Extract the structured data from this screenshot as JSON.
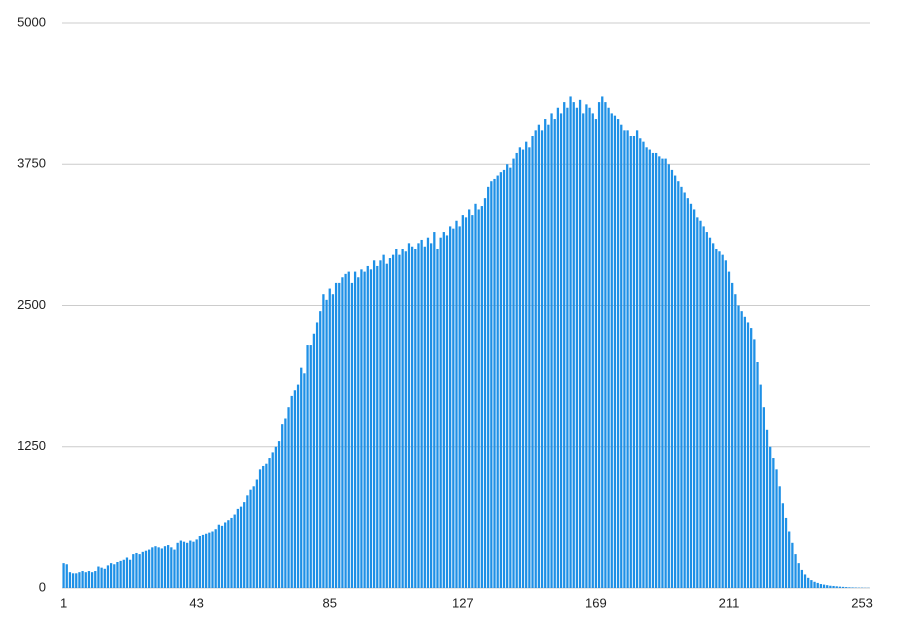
{
  "chart_data": {
    "type": "bar",
    "color": "#1e90e6",
    "grid": true,
    "ylim": [
      0,
      5000
    ],
    "yticks": [
      0,
      1250,
      2500,
      3750,
      5000
    ],
    "categories": [
      "1",
      null,
      null,
      null,
      null,
      null,
      null,
      null,
      null,
      null,
      null,
      null,
      null,
      null,
      null,
      null,
      null,
      null,
      null,
      null,
      null,
      null,
      null,
      null,
      null,
      null,
      null,
      null,
      null,
      null,
      null,
      null,
      null,
      null,
      null,
      null,
      null,
      null,
      null,
      null,
      null,
      null,
      "43",
      null,
      null,
      null,
      null,
      null,
      null,
      null,
      null,
      null,
      null,
      null,
      null,
      null,
      null,
      null,
      null,
      null,
      null,
      null,
      null,
      null,
      null,
      null,
      null,
      null,
      null,
      null,
      null,
      null,
      null,
      null,
      null,
      null,
      null,
      null,
      null,
      null,
      null,
      null,
      null,
      null,
      "85",
      null,
      null,
      null,
      null,
      null,
      null,
      null,
      null,
      null,
      null,
      null,
      null,
      null,
      null,
      null,
      null,
      null,
      null,
      null,
      null,
      null,
      null,
      null,
      null,
      null,
      null,
      null,
      null,
      null,
      null,
      null,
      null,
      null,
      null,
      null,
      null,
      null,
      null,
      null,
      null,
      null,
      "127",
      null,
      null,
      null,
      null,
      null,
      null,
      null,
      null,
      null,
      null,
      null,
      null,
      null,
      null,
      null,
      null,
      null,
      null,
      null,
      null,
      null,
      null,
      null,
      null,
      null,
      null,
      null,
      null,
      null,
      null,
      null,
      null,
      null,
      null,
      null,
      null,
      null,
      null,
      null,
      null,
      null,
      "169",
      null,
      null,
      null,
      null,
      null,
      null,
      null,
      null,
      null,
      null,
      null,
      null,
      null,
      null,
      null,
      null,
      null,
      null,
      null,
      null,
      null,
      null,
      null,
      null,
      null,
      null,
      null,
      null,
      null,
      null,
      null,
      null,
      null,
      null,
      null,
      null,
      null,
      null,
      null,
      null,
      null,
      "211",
      null,
      null,
      null,
      null,
      null,
      null,
      null,
      null,
      null,
      null,
      null,
      null,
      null,
      null,
      null,
      null,
      null,
      null,
      null,
      null,
      null,
      null,
      null,
      null,
      null,
      null,
      null,
      null,
      null,
      null,
      null,
      null,
      null,
      null,
      null,
      null,
      null,
      null,
      null,
      null,
      null,
      "253",
      null,
      null
    ],
    "values": [
      220,
      210,
      140,
      130,
      130,
      140,
      150,
      140,
      150,
      140,
      150,
      190,
      180,
      170,
      200,
      220,
      210,
      230,
      240,
      250,
      270,
      250,
      300,
      310,
      300,
      320,
      330,
      340,
      360,
      370,
      360,
      350,
      370,
      380,
      360,
      340,
      400,
      420,
      410,
      400,
      420,
      410,
      430,
      460,
      470,
      480,
      490,
      500,
      520,
      560,
      550,
      580,
      600,
      620,
      650,
      700,
      720,
      760,
      820,
      870,
      900,
      960,
      1050,
      1080,
      1100,
      1150,
      1200,
      1250,
      1300,
      1450,
      1500,
      1600,
      1700,
      1750,
      1800,
      1950,
      1900,
      2150,
      2150,
      2250,
      2350,
      2450,
      2600,
      2550,
      2650,
      2600,
      2700,
      2700,
      2750,
      2780,
      2800,
      2700,
      2800,
      2750,
      2820,
      2800,
      2850,
      2820,
      2900,
      2850,
      2900,
      2950,
      2870,
      2920,
      2950,
      3000,
      2950,
      3000,
      2980,
      3050,
      3020,
      3000,
      3050,
      3080,
      3020,
      3100,
      3050,
      3150,
      3000,
      3100,
      3150,
      3120,
      3200,
      3180,
      3250,
      3200,
      3300,
      3280,
      3350,
      3300,
      3400,
      3350,
      3380,
      3450,
      3550,
      3600,
      3620,
      3650,
      3680,
      3700,
      3750,
      3720,
      3800,
      3850,
      3900,
      3880,
      3950,
      3900,
      4000,
      4050,
      4100,
      4050,
      4150,
      4100,
      4200,
      4150,
      4250,
      4200,
      4300,
      4250,
      4350,
      4300,
      4250,
      4320,
      4200,
      4280,
      4250,
      4200,
      4150,
      4300,
      4350,
      4300,
      4250,
      4200,
      4180,
      4150,
      4100,
      4050,
      4050,
      4000,
      4000,
      4050,
      3980,
      3950,
      3900,
      3880,
      3850,
      3850,
      3820,
      3800,
      3800,
      3750,
      3700,
      3650,
      3600,
      3550,
      3500,
      3450,
      3400,
      3350,
      3280,
      3250,
      3200,
      3150,
      3100,
      3050,
      3000,
      2980,
      2950,
      2900,
      2800,
      2700,
      2600,
      2500,
      2450,
      2400,
      2350,
      2300,
      2200,
      2000,
      1800,
      1600,
      1400,
      1250,
      1150,
      1050,
      900,
      750,
      620,
      500,
      400,
      300,
      220,
      160,
      120,
      90,
      70,
      55,
      45,
      35,
      30,
      25,
      20,
      18,
      15,
      12,
      10,
      8,
      6,
      5,
      4,
      3,
      3,
      2,
      2
    ]
  }
}
